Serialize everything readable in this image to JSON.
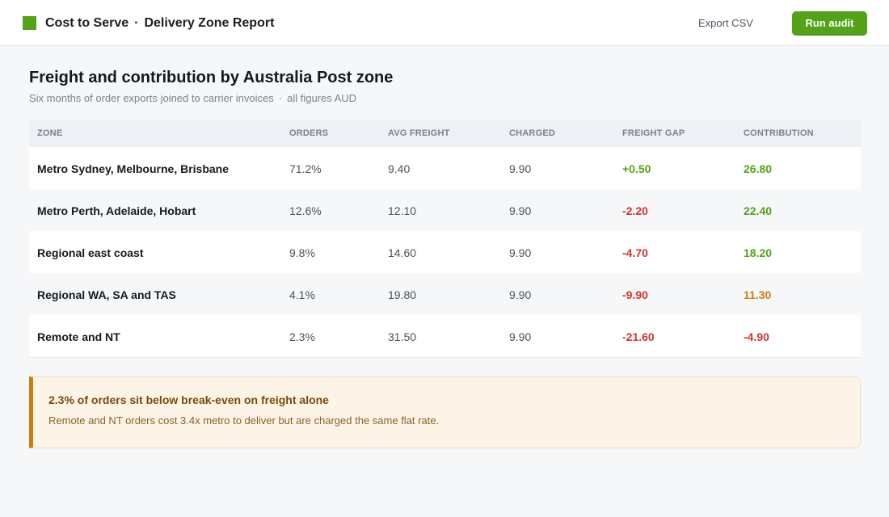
{
  "header": {
    "app_name": "Cost to Serve",
    "separator": "·",
    "report_name": "Delivery Zone Report",
    "export_label": "Export CSV",
    "run_label": "Run audit",
    "brand_color": "#52a317"
  },
  "page": {
    "title": "Freight and contribution by Australia Post zone",
    "subtitle": "Six months of order exports joined to carrier invoices",
    "subtitle_sep": "·",
    "subtitle_note": "all figures AUD"
  },
  "table": {
    "columns": [
      "ZONE",
      "ORDERS",
      "AVG FREIGHT",
      "CHARGED",
      "FREIGHT GAP",
      "CONTRIBUTION"
    ],
    "rows": [
      {
        "zone": "Metro Sydney, Melbourne, Brisbane",
        "orders": "71.2%",
        "avg_freight": "9.40",
        "charged": "9.90",
        "gap": "+0.50",
        "contribution": "26.80"
      },
      {
        "zone": "Metro Perth, Adelaide, Hobart",
        "orders": "12.6%",
        "avg_freight": "12.10",
        "charged": "9.90",
        "gap": "-2.20",
        "contribution": "22.40"
      },
      {
        "zone": "Regional east coast",
        "orders": "9.8%",
        "avg_freight": "14.60",
        "charged": "9.90",
        "gap": "-4.70",
        "contribution": "18.20"
      },
      {
        "zone": "Regional WA, SA and TAS",
        "orders": "4.1%",
        "avg_freight": "19.80",
        "charged": "9.90",
        "gap": "-9.90",
        "contribution": "11.30"
      },
      {
        "zone": "Remote and NT",
        "orders": "2.3%",
        "avg_freight": "31.50",
        "charged": "9.90",
        "gap": "-21.60",
        "contribution": "-4.90"
      }
    ],
    "status_colors": {
      "positive": "#52a317",
      "negative": "#d0352b",
      "warning": "#c7800f"
    }
  },
  "callout": {
    "title": "2.3% of orders sit below break-even on freight alone",
    "body": "Remote and NT orders cost 3.4x metro to deliver but are charged the same flat rate.",
    "accent": "#c7800f"
  }
}
